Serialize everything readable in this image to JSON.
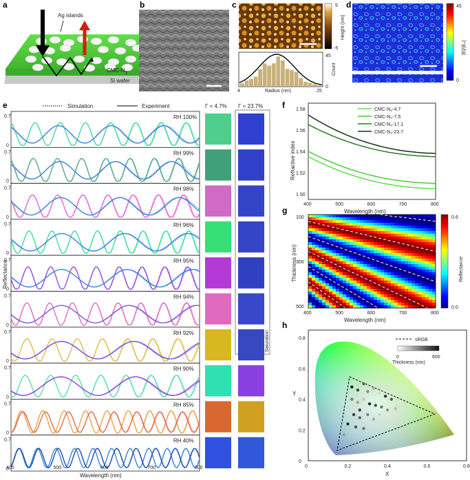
{
  "panels": {
    "a": {
      "letter": "a",
      "ag_islands": "Ag islands",
      "film": "CMC-N",
      "film_sub": "3",
      "substrate": "Si wafer"
    },
    "b": {
      "letter": "b"
    },
    "c": {
      "letter": "c",
      "height_label": "Height (nm)",
      "cb_max": "5",
      "cb_min": "-5",
      "hist_ylabel": "Count",
      "hist_ymax": "45",
      "hist_ymin": "0",
      "hist_xlabel": "Radius (nm)",
      "hist_xmin": "4",
      "hist_xmax": "25"
    },
    "d": {
      "letter": "d",
      "cb_label": "|E|/|E₀|",
      "cb_max": "45",
      "cb_min": "0"
    },
    "e": {
      "letter": "e",
      "legend_sim": "Simulation",
      "legend_exp": "Experiment",
      "gamma1": "Γ = 4.7%",
      "gamma2": "Γ = 23.7%",
      "saturation": "Saturation",
      "ylabel": "Reflectance",
      "xlabel": "Wavelength (nm)",
      "xticks": [
        "400",
        "500",
        "600",
        "700",
        "800"
      ],
      "y_tick": "0.7",
      "y_zero": "0"
    },
    "f": {
      "letter": "f",
      "ylabel": "Refractive index",
      "xlabel": "Wavelength (nm)",
      "yticks": [
        "1.50",
        "1.52",
        "1.54",
        "1.56",
        "1.58"
      ],
      "xticks": [
        "400",
        "500",
        "600",
        "700",
        "800"
      ],
      "legend": [
        "CMC-N₃-4.7",
        "CMC-N₃-7.5",
        "CMC-N₃-17.1",
        "CMC-N₃-23.7"
      ]
    },
    "g": {
      "letter": "g",
      "ylabel": "Thickness (nm)",
      "xlabel": "Wavelength (nm)",
      "yticks": [
        "100",
        "300",
        "500"
      ],
      "xticks": [
        "400",
        "500",
        "600",
        "700",
        "800"
      ],
      "cb_label": "Reflectance",
      "cb_max": "0.6",
      "cb_min": "0.0"
    },
    "h": {
      "letter": "h",
      "ylabel": "Y",
      "xlabel": "X",
      "xticks": [
        "0",
        "0.2",
        "0.4",
        "0.6",
        "0.8"
      ],
      "yticks": [
        "0",
        "0.2",
        "0.4",
        "0.6",
        "0.8"
      ],
      "srgb": "sRGB",
      "thick_label": "Thickness (nm)",
      "thick_min": "0",
      "thick_max": "600"
    }
  },
  "spectra": [
    {
      "rh": "RH 100%",
      "c1": "#4ed8a8",
      "c2": "#3f86e0",
      "sw1": "#4fcf8c",
      "sw2": "#2f3fd0",
      "p1": [
        0.6,
        0.98,
        0.2,
        0.0,
        0.25
      ],
      "p2": [
        0.3,
        1.0,
        0.78,
        0.0,
        0.6
      ]
    },
    {
      "rh": "RH 99%",
      "c1": "#5aa890",
      "c2": "#3f86e0",
      "sw1": "#3fa07a",
      "sw2": "#3040c8",
      "p1": [
        0.6,
        1.0,
        0.18,
        0.0,
        0.5
      ],
      "p2": [
        0.3,
        1.0,
        0.85,
        0.0,
        0.8
      ]
    },
    {
      "rh": "RH 98%",
      "c1": "#e36ad8",
      "c2": "#3f86e0",
      "sw1": "#d06ac6",
      "sw2": "#3444c8",
      "p1": [
        0.55,
        1.0,
        0.2,
        0.0,
        0.9
      ],
      "p2": [
        0.3,
        1.0,
        0.92,
        0.0,
        1.0
      ]
    },
    {
      "rh": "RH 96%",
      "c1": "#40e0a0",
      "c2": "#3f86e0",
      "sw1": "#36e076",
      "sw2": "#3545c8",
      "p1": [
        0.55,
        1.0,
        0.15,
        0.0,
        1.3
      ],
      "p2": [
        0.3,
        1.0,
        1.0,
        0.0,
        1.2
      ]
    },
    {
      "rh": "RH 95%",
      "c1": "#9a50e0",
      "c2": "#3f86e0",
      "sw1": "#b43ad8",
      "sw2": "#3040c0",
      "p1": [
        0.55,
        1.0,
        0.15,
        0.0,
        1.6
      ],
      "p2": [
        0.3,
        1.0,
        1.05,
        0.0,
        1.4
      ]
    },
    {
      "rh": "RH 94%",
      "c1": "#e070c8",
      "c2": "#8a5ad8",
      "sw1": "#e06ac0",
      "sw2": "#3848c8",
      "p1": [
        0.55,
        1.0,
        0.15,
        0.0,
        1.9
      ],
      "p2": [
        0.3,
        1.0,
        1.1,
        0.0,
        1.6
      ]
    },
    {
      "rh": "RH 92%",
      "c1": "#e0c050",
      "c2": "#7a50e0",
      "sw1": "#d8b820",
      "sw2": "#3848c0",
      "p1": [
        0.55,
        1.0,
        0.2,
        0.0,
        2.3
      ],
      "p2": [
        0.3,
        1.0,
        1.2,
        0.0,
        1.9
      ]
    },
    {
      "rh": "RH 90%",
      "c1": "#60e0b0",
      "c2": "#8a48e0",
      "sw1": "#30e0b0",
      "sw2": "#8a40e0",
      "p1": [
        0.5,
        1.0,
        0.2,
        0.0,
        2.7
      ],
      "p2": [
        0.35,
        1.0,
        1.25,
        0.0,
        2.1
      ]
    },
    {
      "rh": "RH 85%",
      "c1": "#e8a850",
      "c2": "#e07050",
      "sw1": "#d86830",
      "sw2": "#d0a020",
      "p1": [
        0.55,
        1.0,
        0.12,
        0.0,
        3.2
      ],
      "p2": [
        0.45,
        1.0,
        0.15,
        0.0,
        3.0
      ]
    },
    {
      "rh": "RH 40%",
      "c1": "#3f86e0",
      "c2": "#2050b0",
      "sw1": "#2f50e0",
      "sw2": "#3058d8",
      "p1": [
        0.4,
        1.0,
        0.06,
        0.0,
        3.6
      ],
      "p2": [
        0.4,
        1.0,
        0.08,
        0.0,
        3.6
      ]
    }
  ],
  "colors": {
    "green": "#4fd83a",
    "accent": "#1a1a1a"
  }
}
